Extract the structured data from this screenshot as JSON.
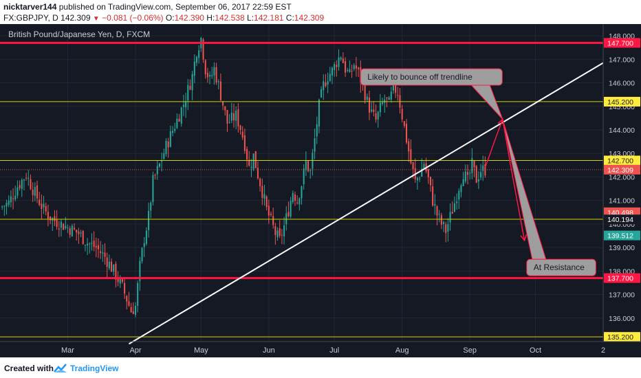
{
  "header": {
    "user": "nicktarver144",
    "published": "published on TradingView.com, September 06, 2017 22:59 EST",
    "symbol": "FX:GBPJPY, D",
    "price": "142.309",
    "change": "−0.081 (−0.06%)",
    "o_label": "O:",
    "o": "142.390",
    "h_label": "H:",
    "h": "142.538",
    "l_label": "L:",
    "l": "142.181",
    "c_label": "C:",
    "c": "142.309"
  },
  "footer": {
    "created_with": "Created with",
    "brand": "TradingView"
  },
  "colors": {
    "background": "#151924",
    "up": "#26a69a",
    "down": "#ef5350",
    "support_resistance": "#ff1744",
    "yellow_line": "#d4d400",
    "trendline": "#ffffff"
  },
  "chart_data": {
    "type": "candlestick",
    "title": "British Pound/Japanese Yen, D, FXCM",
    "y_range": [
      135.0,
      148.5
    ],
    "y_ticks": [
      "148.000",
      "147.000",
      "146.000",
      "145.000",
      "144.000",
      "143.000",
      "142.000",
      "141.000",
      "140.000",
      "139.000",
      "138.000",
      "137.000",
      "136.000",
      "135.200"
    ],
    "x_ticks": [
      {
        "label": "Mar",
        "day": 31
      },
      {
        "label": "Apr",
        "day": 62
      },
      {
        "label": "May",
        "day": 92
      },
      {
        "label": "Jun",
        "day": 123
      },
      {
        "label": "Jul",
        "day": 153
      },
      {
        "label": "Aug",
        "day": 184
      },
      {
        "label": "Sep",
        "day": 215
      },
      {
        "label": "Oct",
        "day": 245
      },
      {
        "label": "2",
        "day": 276
      }
    ],
    "x_range_days": [
      0,
      276
    ],
    "horizontal_levels": [
      {
        "value": 147.7,
        "label": "147.700",
        "kind": "red",
        "thick": true
      },
      {
        "value": 145.2,
        "label": "145.200",
        "kind": "yellow",
        "thick": false
      },
      {
        "value": 142.7,
        "label": "142.700",
        "kind": "yellow",
        "thick": false
      },
      {
        "value": 140.2,
        "label": "140.200",
        "kind": "yellow",
        "thick": false
      },
      {
        "value": 137.7,
        "label": "137.700",
        "kind": "red",
        "thick": true
      },
      {
        "value": 135.2,
        "label": "135.200",
        "kind": "yellow",
        "thick": false
      }
    ],
    "price_labels": [
      {
        "value": 142.309,
        "label": "142.309",
        "color": "#ef5350"
      },
      {
        "value": 140.498,
        "label": "140.498",
        "color": "#ef5350"
      },
      {
        "value": 140.194,
        "label": "140.194",
        "color": "#151924"
      },
      {
        "value": 139.512,
        "label": "139.512",
        "color": "#26a69a"
      }
    ],
    "last_price": 142.309,
    "trendline": {
      "from": [
        59,
        134.9
      ],
      "to": [
        276,
        146.85
      ]
    },
    "annotations": [
      {
        "text": "Likely to bounce off trendline",
        "day": 165,
        "value": 146.6
      },
      {
        "text": "At Resistance",
        "day": 241,
        "value": 138.5
      }
    ],
    "projection_path": [
      [
        222,
        142.4
      ],
      [
        227,
        143.7
      ],
      [
        230,
        144.45
      ],
      [
        234,
        142.3
      ],
      [
        240,
        139.3
      ]
    ],
    "close_path": [
      [
        0,
        140.7
      ],
      [
        4,
        140.9
      ],
      [
        8,
        141.6
      ],
      [
        12,
        142.1
      ],
      [
        16,
        141.3
      ],
      [
        20,
        140.6
      ],
      [
        24,
        140.2
      ],
      [
        28,
        140.0
      ],
      [
        32,
        139.8
      ],
      [
        36,
        139.6
      ],
      [
        40,
        139.2
      ],
      [
        44,
        139.0
      ],
      [
        48,
        138.6
      ],
      [
        52,
        138.0
      ],
      [
        56,
        137.3
      ],
      [
        60,
        136.3
      ],
      [
        62,
        136.5
      ],
      [
        64,
        138.2
      ],
      [
        66,
        139.4
      ],
      [
        68,
        140.3
      ],
      [
        70,
        141.8
      ],
      [
        73,
        142.5
      ],
      [
        76,
        143.3
      ],
      [
        80,
        144.2
      ],
      [
        84,
        145.1
      ],
      [
        88,
        146.3
      ],
      [
        90,
        147.4
      ],
      [
        92,
        147.9
      ],
      [
        94,
        146.6
      ],
      [
        96,
        146.1
      ],
      [
        98,
        146.6
      ],
      [
        100,
        145.9
      ],
      [
        102,
        145.1
      ],
      [
        104,
        144.3
      ],
      [
        108,
        144.6
      ],
      [
        110,
        144.1
      ],
      [
        112,
        143.4
      ],
      [
        114,
        142.4
      ],
      [
        116,
        142.9
      ],
      [
        118,
        142.1
      ],
      [
        120,
        141.4
      ],
      [
        122,
        140.6
      ],
      [
        124,
        140.1
      ],
      [
        126,
        139.6
      ],
      [
        128,
        139.3
      ],
      [
        130,
        139.9
      ],
      [
        132,
        140.6
      ],
      [
        134,
        141.4
      ],
      [
        136,
        141.0
      ],
      [
        138,
        141.7
      ],
      [
        140,
        142.6
      ],
      [
        142,
        142.2
      ],
      [
        144,
        143.6
      ],
      [
        146,
        145.0
      ],
      [
        148,
        145.9
      ],
      [
        150,
        146.3
      ],
      [
        152,
        146.5
      ],
      [
        154,
        146.9
      ],
      [
        156,
        147.2
      ],
      [
        158,
        146.6
      ],
      [
        160,
        146.3
      ],
      [
        162,
        146.8
      ],
      [
        164,
        146.4
      ],
      [
        166,
        145.9
      ],
      [
        168,
        145.2
      ],
      [
        170,
        144.7
      ],
      [
        172,
        144.4
      ],
      [
        174,
        144.9
      ],
      [
        176,
        145.3
      ],
      [
        178,
        145.1
      ],
      [
        180,
        145.8
      ],
      [
        182,
        145.6
      ],
      [
        184,
        144.6
      ],
      [
        186,
        143.6
      ],
      [
        188,
        142.6
      ],
      [
        190,
        141.8
      ],
      [
        192,
        142.1
      ],
      [
        194,
        142.6
      ],
      [
        196,
        141.9
      ],
      [
        198,
        141.0
      ],
      [
        200,
        140.4
      ],
      [
        202,
        140.0
      ],
      [
        204,
        139.7
      ],
      [
        206,
        140.3
      ],
      [
        208,
        140.9
      ],
      [
        210,
        141.6
      ],
      [
        212,
        142.2
      ],
      [
        214,
        141.8
      ],
      [
        216,
        142.5
      ],
      [
        218,
        141.9
      ],
      [
        220,
        142.3
      ],
      [
        222,
        142.309
      ]
    ]
  }
}
